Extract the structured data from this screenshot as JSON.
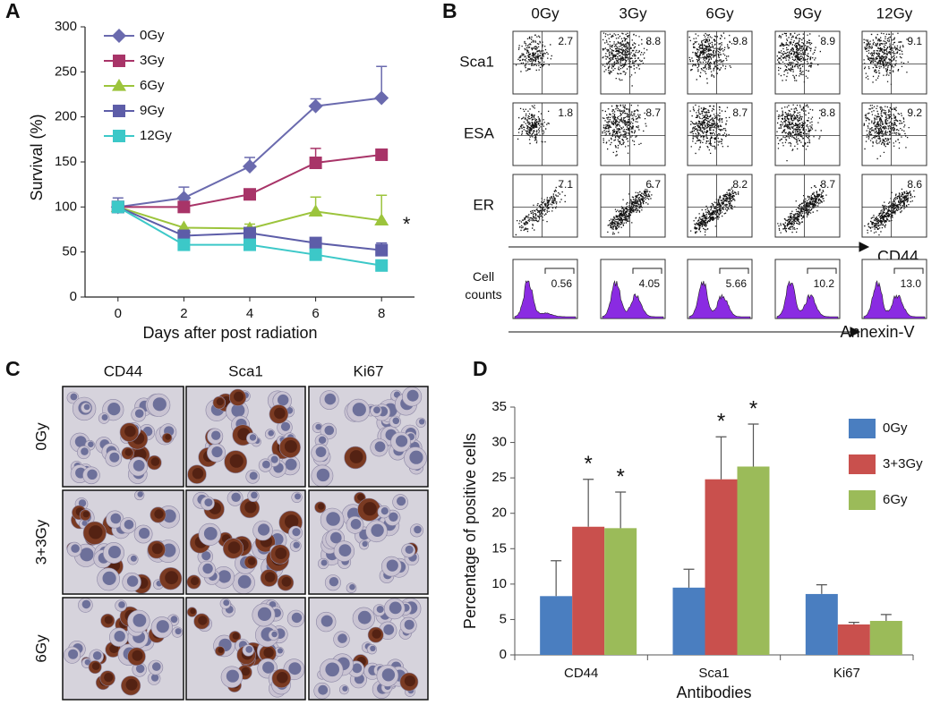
{
  "panel_labels": [
    "A",
    "B",
    "C",
    "D"
  ],
  "chart_data": [
    {
      "type": "line",
      "xlabel": "Days after post radiation",
      "ylabel": "Survival (%)",
      "x": [
        0,
        2,
        4,
        6,
        8
      ],
      "xlim": [
        -1,
        9
      ],
      "xticks": [
        0,
        2,
        4,
        6,
        8
      ],
      "ylim": [
        0,
        300
      ],
      "yticks": [
        0,
        50,
        100,
        150,
        200,
        250,
        300
      ],
      "series": [
        {
          "name": "0Gy",
          "color": "#6a6aae",
          "marker": "diamond",
          "values": [
            100,
            110,
            145,
            212,
            221
          ],
          "errors": [
            10,
            12,
            10,
            8,
            35
          ]
        },
        {
          "name": "3Gy",
          "color": "#a83468",
          "marker": "square",
          "values": [
            100,
            100,
            114,
            149,
            158
          ],
          "errors": [
            null,
            null,
            null,
            16,
            null
          ]
        },
        {
          "name": "6Gy",
          "color": "#9cc43c",
          "marker": "triangle",
          "values": [
            100,
            77,
            76,
            95,
            85
          ],
          "errors": [
            null,
            null,
            5,
            16,
            28
          ],
          "annotation": "*"
        },
        {
          "name": "9Gy",
          "color": "#5d5da8",
          "marker": "square",
          "values": [
            100,
            68,
            71,
            60,
            52
          ],
          "errors": [
            null,
            null,
            null,
            null,
            8
          ]
        },
        {
          "name": "12Gy",
          "color": "#3cc8c8",
          "marker": "square",
          "values": [
            100,
            58,
            58,
            47,
            35
          ],
          "errors": [
            null,
            null,
            null,
            null,
            null
          ]
        }
      ]
    },
    {
      "type": "flow",
      "columns": [
        "0Gy",
        "3Gy",
        "6Gy",
        "9Gy",
        "12Gy"
      ],
      "rows": [
        "Sca1",
        "ESA",
        "ER"
      ],
      "values": [
        [
          2.7,
          8.8,
          9.8,
          8.9,
          9.1
        ],
        [
          1.8,
          8.7,
          8.7,
          8.8,
          9.2
        ],
        [
          7.1,
          6.7,
          8.2,
          8.7,
          8.6
        ]
      ],
      "x_axis_label": "CD44",
      "histogram": {
        "label": "Cell counts",
        "axis_label": "Annexin-V",
        "color": "#8a2be2",
        "values": [
          0.56,
          4.05,
          5.66,
          10.2,
          13
        ],
        "value_labels": [
          "0.56",
          "4.05",
          "5.66",
          "10.2",
          "13.0"
        ]
      }
    },
    {
      "type": "bar",
      "xlabel": "Antibodies",
      "ylabel": "Percentage of positive cells",
      "categories": [
        "CD44",
        "Sca1",
        "Ki67"
      ],
      "ylim": [
        0,
        35
      ],
      "yticks": [
        0,
        5,
        10,
        15,
        20,
        25,
        30,
        35
      ],
      "series": [
        {
          "name": "0Gy",
          "color": "#4a7ec0",
          "values": [
            8.3,
            9.5,
            8.6
          ],
          "errors": [
            5,
            2.6,
            1.3
          ],
          "annotations": [
            null,
            null,
            null
          ]
        },
        {
          "name": "3+3Gy",
          "color": "#c9504d",
          "values": [
            18.1,
            24.8,
            4.3
          ],
          "errors": [
            6.7,
            6,
            0.3
          ],
          "annotations": [
            "*",
            "*",
            null
          ]
        },
        {
          "name": "6Gy",
          "color": "#9bbb59",
          "values": [
            17.9,
            26.6,
            4.8
          ],
          "errors": [
            5.1,
            6,
            0.9
          ],
          "annotations": [
            "*",
            "*",
            null
          ]
        }
      ]
    }
  ],
  "micrographs": {
    "columns": [
      "CD44",
      "Sca1",
      "Ki67"
    ],
    "rows": [
      "0Gy",
      "3+3Gy",
      "6Gy"
    ]
  }
}
